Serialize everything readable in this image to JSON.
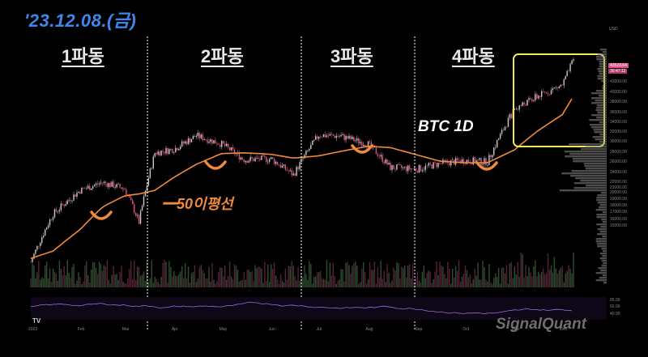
{
  "header": {
    "date": "'23.12.08.(금)",
    "symbol_label": "BTC 1D",
    "ma_label": "━50이평선",
    "brand": "SignalQuant",
    "tv_logo": "TV"
  },
  "waves": [
    "1파동",
    "2파동",
    "3파동",
    "4파동"
  ],
  "colors": {
    "date": "#3f86ea",
    "ma": "#f08a3c",
    "up": "#c9c9c9",
    "down": "#e0508a",
    "rsi": "#9b6bd6",
    "highlight_box": "#f5e85c",
    "divider": "#ffffff"
  },
  "y_axis_labels": [
    "42000.00",
    "40000.00",
    "38000.00",
    "36000.00",
    "34000.00",
    "32000.00",
    "30000.00",
    "28000.00",
    "26000.00",
    "24000.00",
    "22000.00",
    "21000.00",
    "20000.00",
    "19000.00",
    "18000.00",
    "17000.00",
    "16000.00",
    "15000.00"
  ],
  "price_badges": [
    "43523.64",
    "30:47:12"
  ],
  "usd_label": "USD",
  "rsi_labels": [
    "80.00",
    "60.00",
    "40.00"
  ],
  "x_axis_labels": [
    "2023",
    "Feb",
    "Mar",
    "Apr",
    "May",
    "Jun",
    "Jul",
    "Aug",
    "Sep",
    "Oct",
    "Nov",
    "Dec"
  ],
  "chart_data": {
    "type": "line",
    "title": "BTC 1D",
    "x": [
      "2023-01-01",
      "2023-01-15",
      "2023-02-01",
      "2023-02-15",
      "2023-03-01",
      "2023-03-10",
      "2023-03-20",
      "2023-04-01",
      "2023-04-15",
      "2023-05-01",
      "2023-05-15",
      "2023-06-01",
      "2023-06-15",
      "2023-07-01",
      "2023-07-15",
      "2023-08-01",
      "2023-08-15",
      "2023-09-01",
      "2023-09-15",
      "2023-10-01",
      "2023-10-15",
      "2023-11-01",
      "2023-11-15",
      "2023-12-01",
      "2023-12-08"
    ],
    "series": [
      {
        "name": "BTC",
        "values": [
          16600,
          20900,
          23400,
          24300,
          23600,
          20100,
          28000,
          28500,
          30400,
          29200,
          27100,
          27200,
          25200,
          30500,
          30300,
          29200,
          26100,
          25900,
          26600,
          27000,
          26800,
          34500,
          36600,
          38700,
          43500
        ]
      },
      {
        "name": "50이평선",
        "values": [
          16900,
          17500,
          19400,
          21600,
          22800,
          23000,
          23400,
          24900,
          26500,
          27900,
          28000,
          27800,
          27300,
          27600,
          28200,
          28900,
          28700,
          27700,
          26900,
          26700,
          26700,
          28400,
          31000,
          33600,
          36700
        ]
      }
    ],
    "ylim": [
      15000,
      44000
    ],
    "log_scale": true,
    "annotations": [
      "1파동",
      "2파동",
      "3파동",
      "4파동"
    ]
  }
}
